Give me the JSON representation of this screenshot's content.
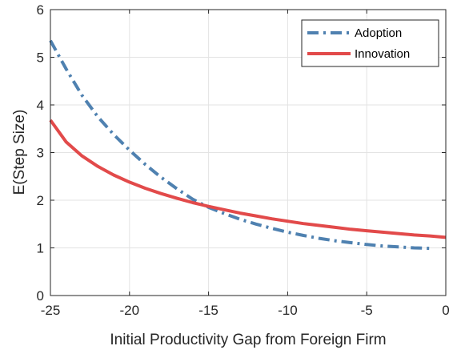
{
  "chart_data": {
    "type": "line",
    "title": "",
    "xlabel": "Initial Productivity Gap from Foreign Firm",
    "ylabel": "E(Step Size)",
    "xlim": [
      -25,
      0
    ],
    "ylim": [
      0,
      6
    ],
    "xticks": [
      -25,
      -20,
      -15,
      -10,
      -5,
      0
    ],
    "xtick_labels": [
      "-25",
      "-20",
      "-15",
      "-10",
      "-5",
      "0"
    ],
    "yticks": [
      0,
      1,
      2,
      3,
      4,
      5,
      6
    ],
    "ytick_labels": [
      "0",
      "1",
      "2",
      "3",
      "4",
      "5",
      "6"
    ],
    "grid": true,
    "legend_position": "top-right",
    "x": [
      -25,
      -24,
      -23,
      -22,
      -21,
      -20,
      -19,
      -18,
      -17,
      -16,
      -15,
      -14,
      -13,
      -12,
      -11,
      -10,
      -9,
      -8,
      -7,
      -6,
      -5,
      -4,
      -3,
      -2,
      -1,
      0
    ],
    "series": [
      {
        "name": "Adoption",
        "color": "#4f81b0",
        "dash": "dash-dot",
        "values": [
          5.35,
          4.75,
          4.2,
          3.75,
          3.38,
          3.05,
          2.75,
          2.48,
          2.24,
          2.02,
          1.85,
          1.72,
          1.6,
          1.5,
          1.41,
          1.33,
          1.26,
          1.2,
          1.15,
          1.11,
          1.07,
          1.04,
          1.02,
          1.0,
          0.99,
          null
        ]
      },
      {
        "name": "Innovation",
        "color": "#e24a4a",
        "dash": "solid",
        "values": [
          3.68,
          3.22,
          2.93,
          2.71,
          2.53,
          2.38,
          2.25,
          2.14,
          2.04,
          1.95,
          1.87,
          1.8,
          1.73,
          1.67,
          1.61,
          1.56,
          1.51,
          1.47,
          1.43,
          1.39,
          1.36,
          1.33,
          1.3,
          1.27,
          1.25,
          1.22
        ]
      }
    ]
  }
}
